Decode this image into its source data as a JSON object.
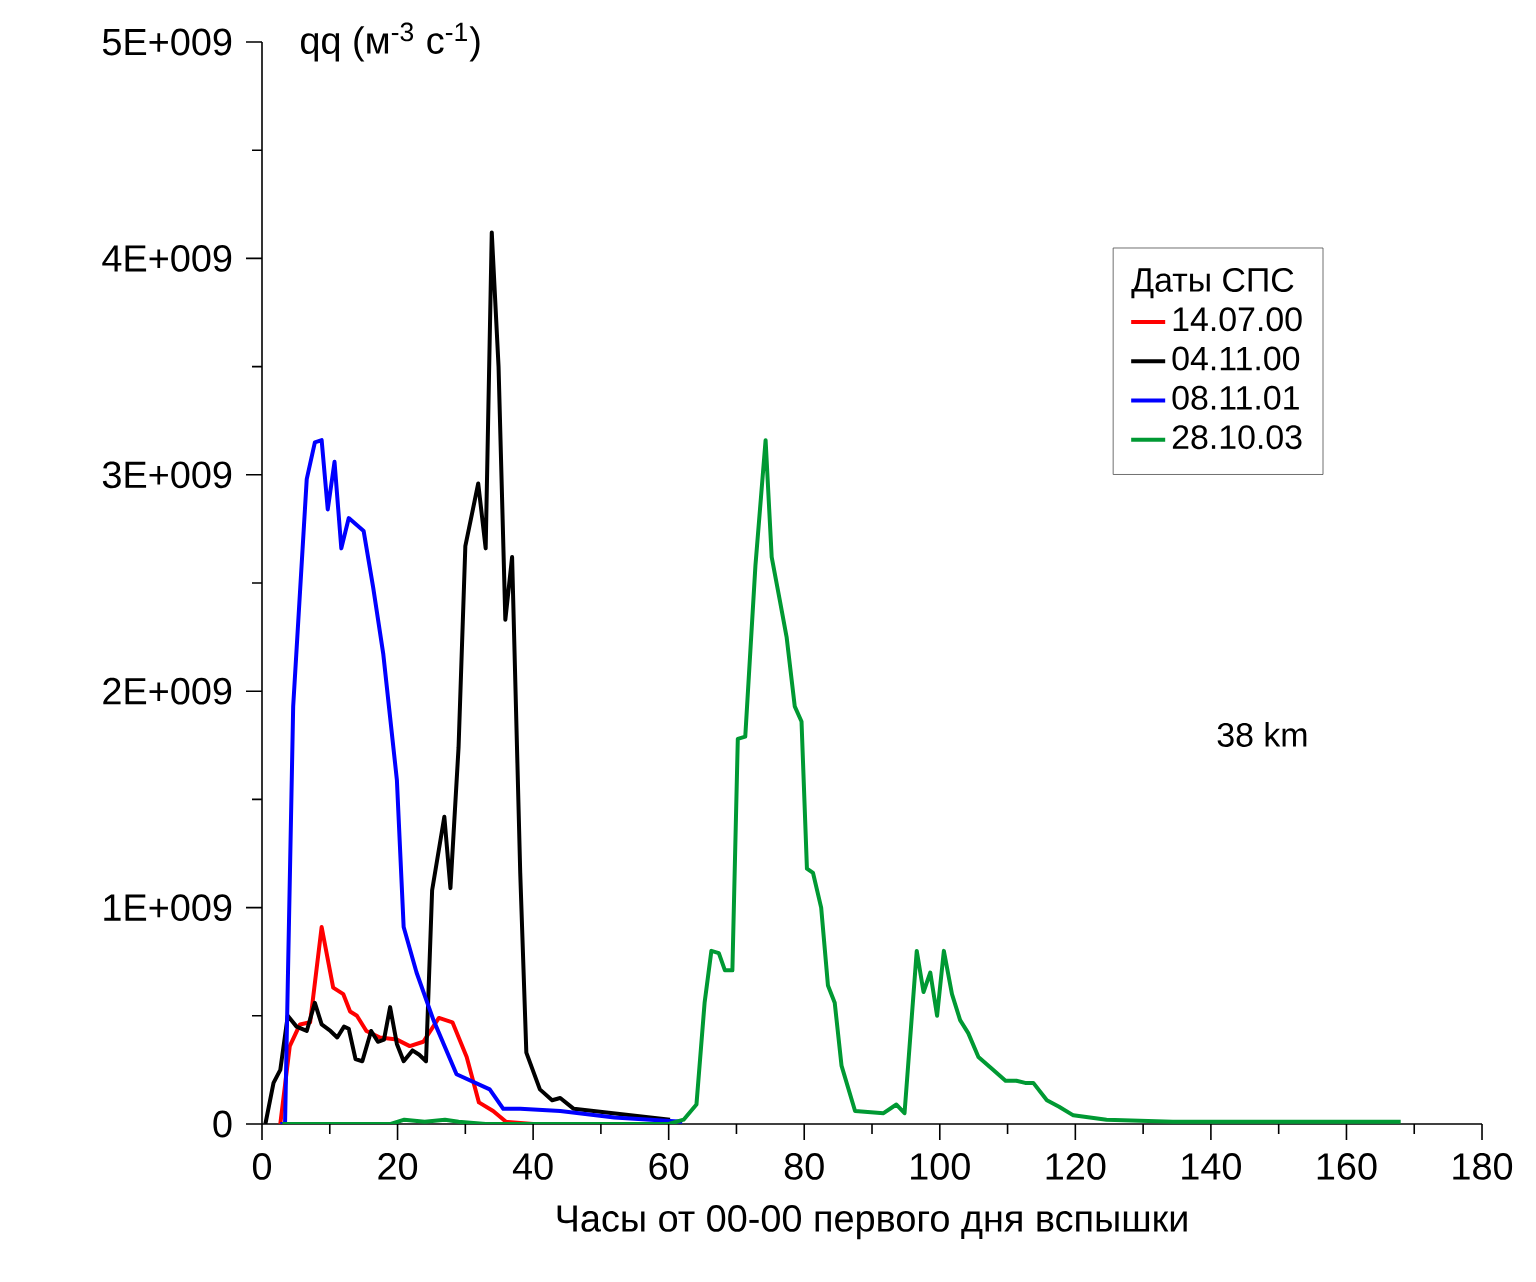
{
  "chart_data": {
    "type": "line",
    "ylabel": "qq (м$^{-3}$ с$^{-1}$)",
    "xlabel": "Часы от 00-00 первого дня вспышки",
    "legend_title": "Даты СПС",
    "legend": "top right",
    "annotations": [
      "38 km"
    ],
    "xlim": [
      0,
      180
    ],
    "xticks": [
      0,
      20,
      40,
      60,
      80,
      100,
      120,
      140,
      160,
      180
    ],
    "ylim": [
      0,
      5000000000.0
    ],
    "yticks": [
      0,
      {
        "value": 1000000000.0,
        "label": "1E+009"
      },
      {
        "value": 2000000000.0,
        "label": "2E+009"
      },
      {
        "value": 3000000000.0,
        "label": "3E+009"
      },
      {
        "value": 4000000000.0,
        "label": "4E+009"
      },
      {
        "value": 5000000000.0,
        "label": "5E+009"
      }
    ],
    "series": [
      {
        "name": "14.07.00",
        "color": "#ff0000",
        "x": [
          2.7,
          4.1,
          5.6,
          7.1,
          8.8,
          10.5,
          12,
          13,
          14,
          15.4,
          17.4,
          19.9,
          21.8,
          23.8,
          26.1,
          28.1,
          30.2,
          32,
          34.1,
          36,
          40
        ],
        "values": [
          0,
          360000000.0,
          460000000.0,
          470000000.0,
          910000000.0,
          630000000.0,
          600000000.0,
          520000000.0,
          500000000.0,
          430000000.0,
          400000000.0,
          390000000.0,
          360000000.0,
          380000000.0,
          490000000.0,
          470000000.0,
          310000000.0,
          100000000.0,
          60000000.0,
          10000000.0,
          0
        ]
      },
      {
        "name": "04.11.00",
        "color": "#000000",
        "x": [
          0.5,
          1.7,
          2.7,
          3.8,
          5.1,
          6.6,
          7.8,
          8.8,
          10.1,
          11.1,
          12.1,
          12.8,
          13.8,
          14.8,
          16.1,
          17.1,
          18,
          18.9,
          19.9,
          20.9,
          22.2,
          23.2,
          24.2,
          25.1,
          26.9,
          27.8,
          29,
          30,
          31.9,
          33,
          33.9,
          34.9,
          35.9,
          36.9,
          38.1,
          39,
          41,
          42.8,
          44,
          46,
          51.8,
          60.2
        ],
        "values": [
          0,
          190000000.0,
          250000000.0,
          500000000.0,
          450000000.0,
          430000000.0,
          560000000.0,
          460000000.0,
          430000000.0,
          400000000.0,
          450000000.0,
          440000000.0,
          300000000.0,
          290000000.0,
          430000000.0,
          380000000.0,
          390000000.0,
          540000000.0,
          370000000.0,
          290000000.0,
          340000000.0,
          320000000.0,
          290000000.0,
          1080000000.0,
          1420000000.0,
          1090000000.0,
          1740000000.0,
          2670000000.0,
          2960000000.0,
          2660000000.0,
          4120000000.0,
          3500000000.0,
          2330000000.0,
          2620000000.0,
          1160000000.0,
          330000000.0,
          160000000.0,
          110000000.0,
          120000000.0,
          70000000.0,
          50000000.0,
          20000000.0
        ]
      },
      {
        "name": "08.11.01",
        "color": "#0000ff",
        "x": [
          2.7,
          3.4,
          4.6,
          6.6,
          7.8,
          8.8,
          9.7,
          10.7,
          11.7,
          12.8,
          15,
          16.4,
          17.9,
          19.9,
          20.9,
          22.8,
          25.3,
          28.7,
          33.6,
          35.6,
          38.1,
          44,
          52,
          62
        ],
        "values": [
          0,
          0,
          1930000000.0,
          2980000000.0,
          3150000000.0,
          3160000000.0,
          2840000000.0,
          3060000000.0,
          2660000000.0,
          2800000000.0,
          2740000000.0,
          2480000000.0,
          2170000000.0,
          1590000000.0,
          910000000.0,
          700000000.0,
          480000000.0,
          230000000.0,
          160000000.0,
          70000000.0,
          70000000.0,
          60000000.0,
          30000000.0,
          10000000.0
        ]
      },
      {
        "name": "28.10.03",
        "color": "#009933",
        "x": [
          3,
          19,
          21,
          24,
          27,
          29,
          33,
          60,
          62.2,
          64.1,
          65.3,
          66.3,
          67.4,
          68.3,
          69.4,
          70.2,
          71.3,
          72.8,
          74.3,
          75.2,
          76.4,
          77.4,
          78.6,
          79.6,
          80.4,
          81.3,
          82.5,
          83.5,
          84.5,
          85.5,
          87.5,
          91.7,
          93.6,
          94.8,
          96.6,
          97.6,
          98.6,
          99.6,
          100.6,
          101.8,
          103,
          104.2,
          105.7,
          107.9,
          109.7,
          111.3,
          112.6,
          113.8,
          115.8,
          117.6,
          119.7,
          124.6,
          134.4,
          168
        ],
        "values": [
          0,
          0,
          20000000.0,
          10000000.0,
          20000000.0,
          10000000.0,
          0,
          0,
          20000000.0,
          90000000.0,
          560000000.0,
          800000000.0,
          790000000.0,
          710000000.0,
          710000000.0,
          1780000000.0,
          1790000000.0,
          2580000000.0,
          3160000000.0,
          2620000000.0,
          2420000000.0,
          2250000000.0,
          1930000000.0,
          1860000000.0,
          1180000000.0,
          1160000000.0,
          1000000000.0,
          640000000.0,
          560000000.0,
          270000000.0,
          60000000.0,
          50000000.0,
          90000000.0,
          50000000.0,
          800000000.0,
          610000000.0,
          700000000.0,
          500000000.0,
          800000000.0,
          600000000.0,
          480000000.0,
          420000000.0,
          310000000.0,
          250000000.0,
          200000000.0,
          200000000.0,
          190000000.0,
          190000000.0,
          110000000.0,
          80000000.0,
          40000000.0,
          20000000.0,
          10000000.0,
          10000000.0
        ]
      }
    ]
  }
}
